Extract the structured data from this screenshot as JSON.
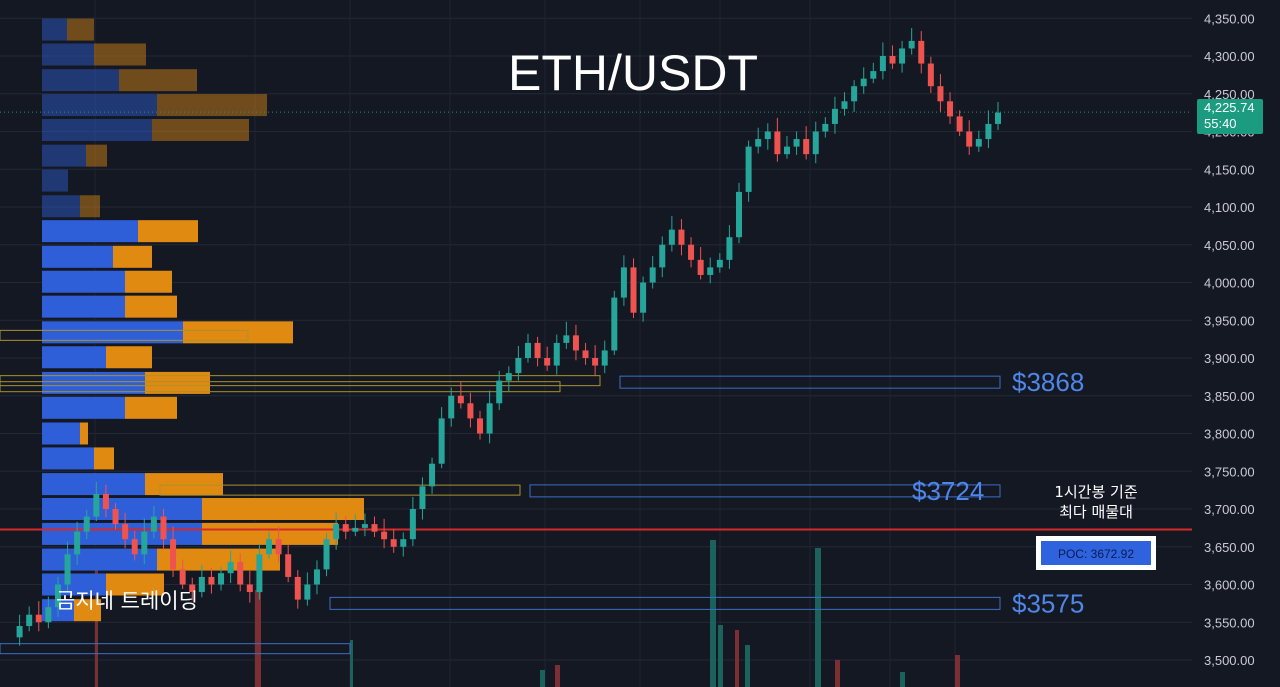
{
  "chart_data": {
    "type": "candlestick",
    "title": "ETH/USDT",
    "watermark": "곰지네 트레이딩",
    "y_ticks": [
      "4,350.00",
      "4,300.00",
      "4,250.00",
      "4,200.00",
      "4,150.00",
      "4,100.00",
      "4,050.00",
      "4,000.00",
      "3,950.00",
      "3,900.00",
      "3,850.00",
      "3,800.00",
      "3,750.00",
      "3,700.00",
      "3,650.00",
      "3,600.00",
      "3,550.00",
      "3,500.00"
    ],
    "ylim": [
      3480,
      4370
    ],
    "last_price": "4,225.74",
    "countdown": "55:40",
    "poc_label": "POC: 3672.92",
    "poc_value": 3672.92,
    "poc_note_line1": "1시간봉 기준",
    "poc_note_line2": "최다 매물대",
    "zones": [
      {
        "label": "$3868",
        "value": 3868
      },
      {
        "label": "$3724",
        "value": 3724
      },
      {
        "label": "$3575",
        "value": 3575
      }
    ],
    "price_path": [
      3530,
      3545,
      3560,
      3550,
      3570,
      3600,
      3640,
      3670,
      3690,
      3720,
      3700,
      3680,
      3660,
      3640,
      3670,
      3690,
      3660,
      3620,
      3600,
      3590,
      3610,
      3600,
      3615,
      3630,
      3600,
      3590,
      3640,
      3660,
      3640,
      3610,
      3580,
      3600,
      3620,
      3660,
      3680,
      3670,
      3675,
      3680,
      3670,
      3660,
      3650,
      3660,
      3700,
      3730,
      3760,
      3820,
      3850,
      3840,
      3820,
      3800,
      3840,
      3870,
      3880,
      3900,
      3920,
      3900,
      3890,
      3920,
      3930,
      3910,
      3900,
      3890,
      3910,
      3980,
      4020,
      3960,
      4000,
      4020,
      4050,
      4070,
      4050,
      4030,
      4010,
      4020,
      4030,
      4060,
      4120,
      4180,
      4190,
      4200,
      4170,
      4180,
      4190,
      4170,
      4200,
      4210,
      4230,
      4240,
      4260,
      4270,
      4280,
      4300,
      4290,
      4310,
      4320,
      4290,
      4260,
      4240,
      4220,
      4200,
      4180,
      4190,
      4210,
      4225
    ],
    "volume_profile": [
      {
        "price": 4335,
        "buy": 25,
        "sell": 27
      },
      {
        "price": 4302,
        "buy": 52,
        "sell": 52
      },
      {
        "price": 4268,
        "buy": 77,
        "sell": 78
      },
      {
        "price": 4235,
        "buy": 115,
        "sell": 110
      },
      {
        "price": 4202,
        "buy": 110,
        "sell": 97
      },
      {
        "price": 4168,
        "buy": 44,
        "sell": 21
      },
      {
        "price": 4135,
        "buy": 26,
        "sell": 0
      },
      {
        "price": 4101,
        "buy": 38,
        "sell": 20
      },
      {
        "price": 4068,
        "buy": 96,
        "sell": 60
      },
      {
        "price": 4034,
        "buy": 71,
        "sell": 39
      },
      {
        "price": 4001,
        "buy": 83,
        "sell": 47
      },
      {
        "price": 3968,
        "buy": 83,
        "sell": 52
      },
      {
        "price": 3934,
        "buy": 141,
        "sell": 110
      },
      {
        "price": 3901,
        "buy": 64,
        "sell": 46
      },
      {
        "price": 3867,
        "buy": 103,
        "sell": 65
      },
      {
        "price": 3834,
        "buy": 83,
        "sell": 52
      },
      {
        "price": 3800,
        "buy": 38,
        "sell": 8
      },
      {
        "price": 3767,
        "buy": 52,
        "sell": 20
      },
      {
        "price": 3733,
        "buy": 103,
        "sell": 78
      },
      {
        "price": 3700,
        "buy": 160,
        "sell": 162
      },
      {
        "price": 3667,
        "buy": 160,
        "sell": 136
      },
      {
        "price": 3633,
        "buy": 115,
        "sell": 123
      },
      {
        "price": 3600,
        "buy": 64,
        "sell": 58
      },
      {
        "price": 3566,
        "buy": 32,
        "sell": 27
      }
    ],
    "colors": {
      "up": "#26a69a",
      "down": "#ef5350",
      "vp_buy": "#2f5fd8",
      "vp_sell": "#e08a12",
      "poc_line": "#d62a2a",
      "zone_text": "#4f86e8",
      "price_badge": "#1b9c80"
    }
  }
}
